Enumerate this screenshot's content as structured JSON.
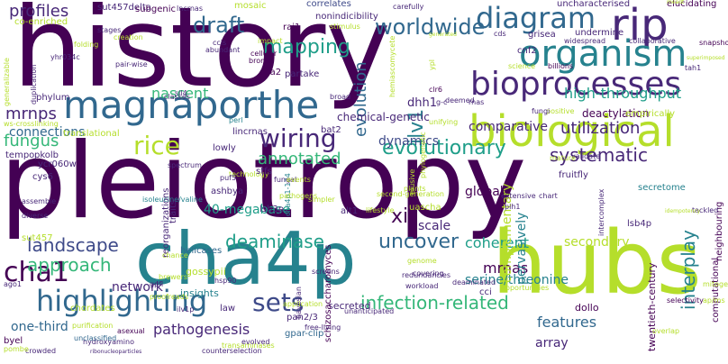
{
  "palette": {
    "dark_purple": "#440154",
    "indigo": "#482878",
    "slate_blue": "#3e4a89",
    "steel_blue": "#31688e",
    "teal": "#26828e",
    "sea_green": "#1f9e89",
    "green": "#35b779",
    "light_green": "#6ece58",
    "lime": "#b5de2b",
    "yellow": "#fde725"
  },
  "words": [
    "history",
    "pleiotropy",
    "cha4p",
    "hubs",
    "biological",
    "bioprocesses",
    "magnaporthe",
    "diagram",
    "rip",
    "organism",
    "highlighting",
    "sets",
    "wiring",
    "rice",
    "draft",
    "worldwide",
    "mapping",
    "uncover",
    "cha1",
    "deaminase",
    "landscape",
    "approach",
    "evolutionary",
    "systematic",
    "infection-related",
    "interplay",
    "ilv1",
    "utilization",
    "annotated",
    "fungus",
    "xii",
    "mrnas",
    "coherent",
    "evolution",
    "features",
    "profiles",
    "high-throughput",
    "nascent",
    "mrnps",
    "pathogenesis",
    "dynamics",
    "comparative",
    "connections",
    "40-megabase",
    "global",
    "network",
    "secondary",
    "serine/threonine",
    "pervasively",
    "complementary",
    "array",
    "one-third",
    "scale",
    "chemical-genetic",
    "deactylation",
    "ycr060w",
    "gossypii",
    "secreted",
    "dhh1",
    "twentieth-century",
    "dollo",
    "insights",
    "lsb3p",
    "ashbya",
    "chordates",
    "helicases",
    "reorganizations",
    "uascha",
    "sut457delta",
    "subgenic",
    "mosaic",
    "nonindicibility",
    "correlates",
    "uncharacterised",
    "elucidating",
    "hemiascomycete",
    "co-enriched",
    "neighbouring",
    "fruitfly",
    "secretome",
    "second-generation",
    "ypl",
    "lncrnas",
    "lincrnas",
    "alt1",
    "pan2/3",
    "gpar-clip",
    "schizosaccharomyces",
    "transaminases",
    "bayesian",
    "computational",
    "selectivity",
    "isoleucine/valine",
    "perl",
    "chance",
    "cha4p1-174",
    "counterselection",
    "hydroxyamino",
    "unclassified",
    "purification",
    "ribonucleoparticles",
    "asexual",
    "mitogen",
    "snapshots",
    "gpfl",
    "phylum",
    "translational",
    "classes",
    "sil4",
    "broad",
    "g-c",
    "clr6",
    "rnas",
    "unifying",
    "spectrum",
    "tempo",
    "pkolb",
    "cys6",
    "assemble",
    "diverse",
    "sut457",
    "ago1",
    "proofreads",
    "brewers",
    "law",
    "hsp90",
    "crowded",
    "pombe",
    "byel",
    "ilv1p",
    "lsb4p",
    "cci",
    "workload",
    "deaminated",
    "covering",
    "genome",
    "unanticipated",
    "free-living",
    "validate",
    "technology",
    "stfs",
    "puf5",
    "fungal",
    "traits",
    "lowly",
    "bat2",
    "empirically",
    "positive",
    "fungi",
    "cnf2",
    "grisea",
    "undermine",
    "widespread",
    "collaborative",
    "billions",
    "science",
    "deemed",
    "oca2",
    "partake",
    "brome",
    "cellular",
    "impact",
    "abundant",
    "creation",
    "ccis",
    "stages",
    "folding",
    "pair-wise",
    "duplication",
    "yhr034c",
    "generalizable",
    "ws-crosslinking",
    "rai1",
    "stimulus",
    "carefully",
    "cds",
    "tah1",
    "superimposed",
    "generated",
    "events",
    "pathogens",
    "simpler",
    "plants",
    "elusive",
    "mature",
    "redundancies",
    "phylogenetic",
    "opportunities",
    "application",
    "screens",
    "evolved",
    "lifestyle",
    "chart",
    "intercomplex",
    "extensive",
    "pih1",
    "tackled",
    "ap/ms",
    "overlap",
    "meadt",
    "idempotency"
  ]
}
